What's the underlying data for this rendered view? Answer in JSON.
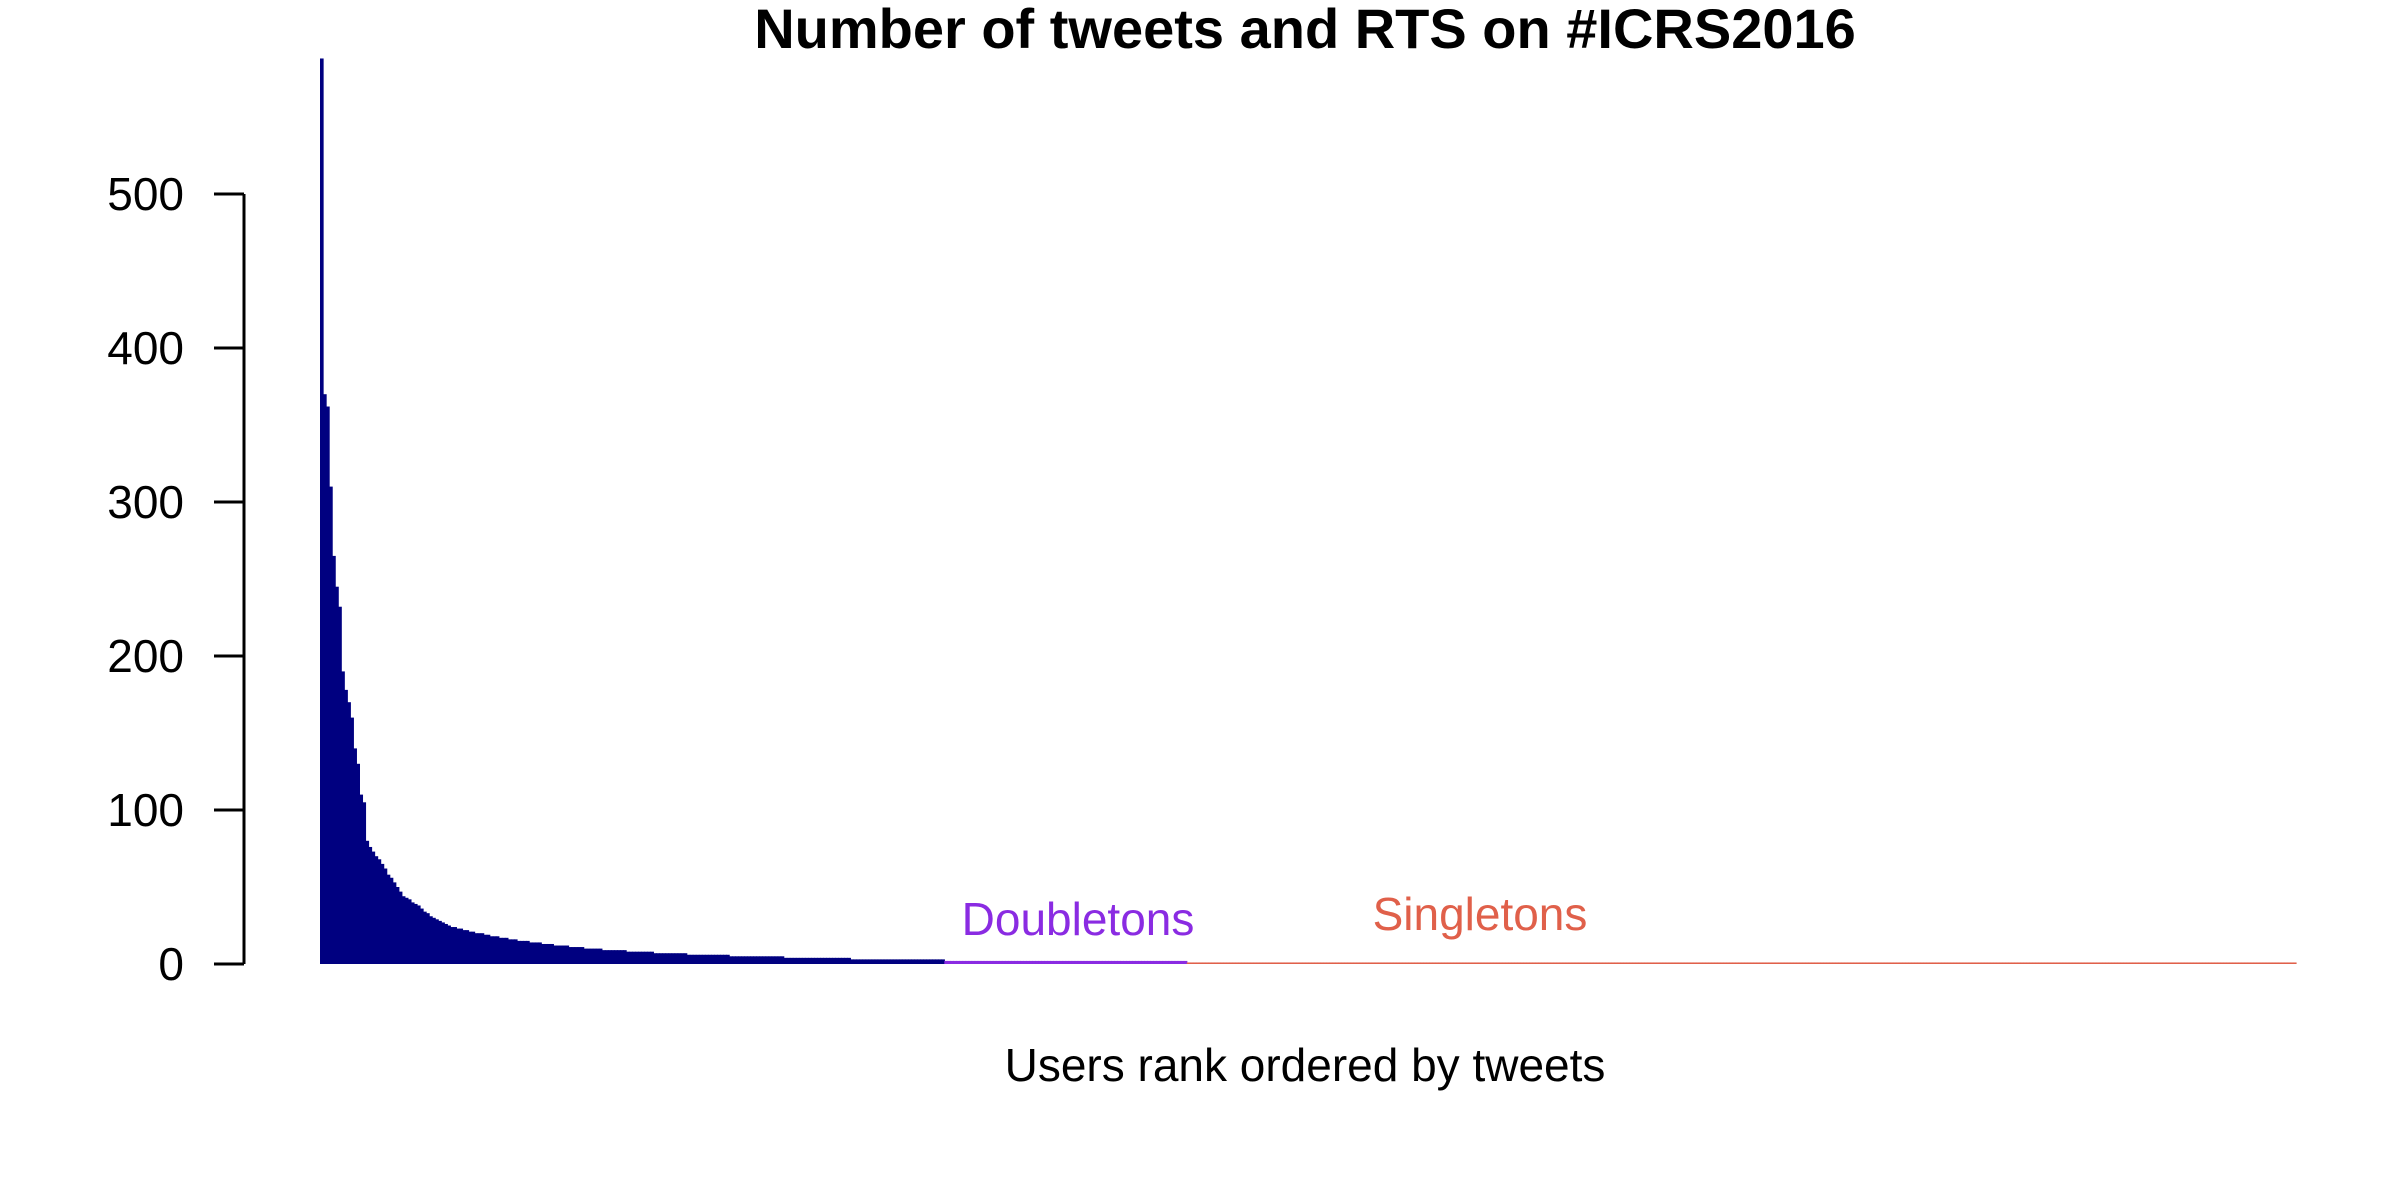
{
  "chart_data": {
    "type": "bar",
    "title": "Number of tweets and RTS on #ICRS2016",
    "xlabel": "Users rank ordered by tweets",
    "ylabel": "",
    "ylim": [
      0,
      590
    ],
    "yticks": [
      0,
      100,
      200,
      300,
      400,
      500
    ],
    "grid": false,
    "legend": "none",
    "colors": {
      "head": "#000080",
      "doubletons": "#8a2be2",
      "singletons": "#e0604a",
      "axis": "#000000"
    },
    "head_values": [
      588,
      370,
      362,
      310,
      265,
      245,
      232,
      190,
      178,
      170,
      160,
      140,
      130,
      110,
      105,
      80,
      76,
      73,
      70,
      68,
      65,
      62,
      58,
      56,
      53,
      50,
      47,
      44,
      43,
      42,
      40,
      39,
      38,
      36,
      34,
      33,
      31,
      30,
      29,
      28,
      27,
      26,
      25,
      24,
      24,
      23,
      23,
      22,
      22,
      21,
      21,
      20,
      20,
      20,
      19,
      19,
      18,
      18,
      18,
      17,
      17,
      17,
      16,
      16,
      16,
      15,
      15,
      15,
      15,
      14,
      14,
      14,
      14,
      13,
      13,
      13,
      13,
      12,
      12,
      12,
      12,
      12,
      11,
      11,
      11,
      11,
      11,
      10,
      10,
      10,
      10,
      10,
      10,
      9,
      9,
      9,
      9,
      9,
      9,
      9,
      9,
      8,
      8,
      8,
      8,
      8,
      8,
      8,
      8,
      8,
      7,
      7,
      7,
      7,
      7,
      7,
      7,
      7,
      7,
      7,
      7,
      6,
      6,
      6,
      6,
      6,
      6,
      6,
      6,
      6,
      6,
      6,
      6,
      6,
      6,
      5,
      5,
      5,
      5,
      5,
      5,
      5,
      5,
      5,
      5,
      5,
      5,
      5,
      5,
      5,
      5,
      5,
      5,
      4,
      4,
      4,
      4,
      4,
      4,
      4,
      4,
      4,
      4,
      4,
      4,
      4,
      4,
      4,
      4,
      4,
      4,
      4,
      4,
      4,
      4,
      3,
      3,
      3,
      3,
      3,
      3,
      3,
      3,
      3,
      3,
      3,
      3,
      3,
      3,
      3,
      3,
      3,
      3,
      3,
      3,
      3,
      3,
      3,
      3,
      3,
      3,
      3,
      3,
      3,
      3,
      3
    ],
    "doubletons": {
      "label": "Doubletons",
      "value": 2,
      "count": 80
    },
    "singletons": {
      "label": "Singletons",
      "value": 1,
      "count": 366
    }
  }
}
